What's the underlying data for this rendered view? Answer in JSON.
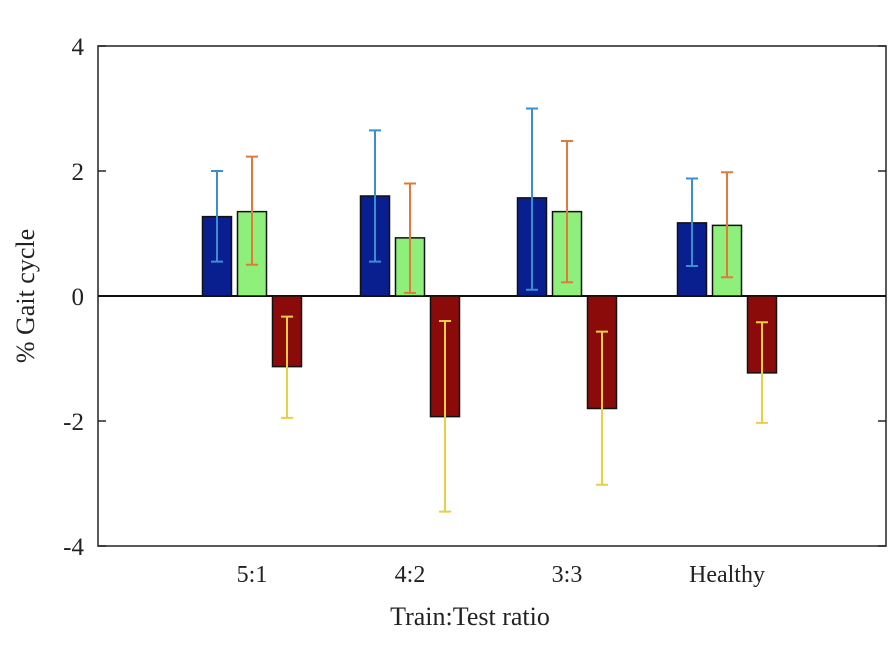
{
  "chart_data": {
    "type": "bar",
    "title": "",
    "xlabel": "Train:Test ratio",
    "ylabel": "% Gait cycle",
    "ylim": [
      -4,
      4
    ],
    "yticks": [
      -4,
      -2,
      0,
      2,
      4
    ],
    "ytick_labels": [
      "-4",
      "-2",
      "0",
      "2",
      "4"
    ],
    "categories": [
      "5:1",
      "4:2",
      "3:3",
      "Healthy"
    ],
    "grid": false,
    "legend": "none",
    "series": [
      {
        "color": "#0a1f8f",
        "error_color": "#3a8fd0",
        "values": [
          1.27,
          1.6,
          1.57,
          1.17
        ],
        "error_low": [
          0.55,
          0.55,
          0.1,
          0.48
        ],
        "error_high": [
          2.0,
          2.65,
          3.0,
          1.88
        ]
      },
      {
        "color": "#8ef07a",
        "error_color": "#e07a3a",
        "values": [
          1.35,
          0.93,
          1.35,
          1.13
        ],
        "error_low": [
          0.5,
          0.05,
          0.22,
          0.3
        ],
        "error_high": [
          2.23,
          1.8,
          2.48,
          1.98
        ]
      },
      {
        "color": "#8b0b0b",
        "error_color": "#e8d040",
        "values": [
          -1.13,
          -1.93,
          -1.8,
          -1.23
        ],
        "error_low": [
          -1.95,
          -3.45,
          -3.02,
          -2.03
        ],
        "error_high": [
          -0.33,
          -0.4,
          -0.57,
          -0.42
        ]
      }
    ]
  }
}
